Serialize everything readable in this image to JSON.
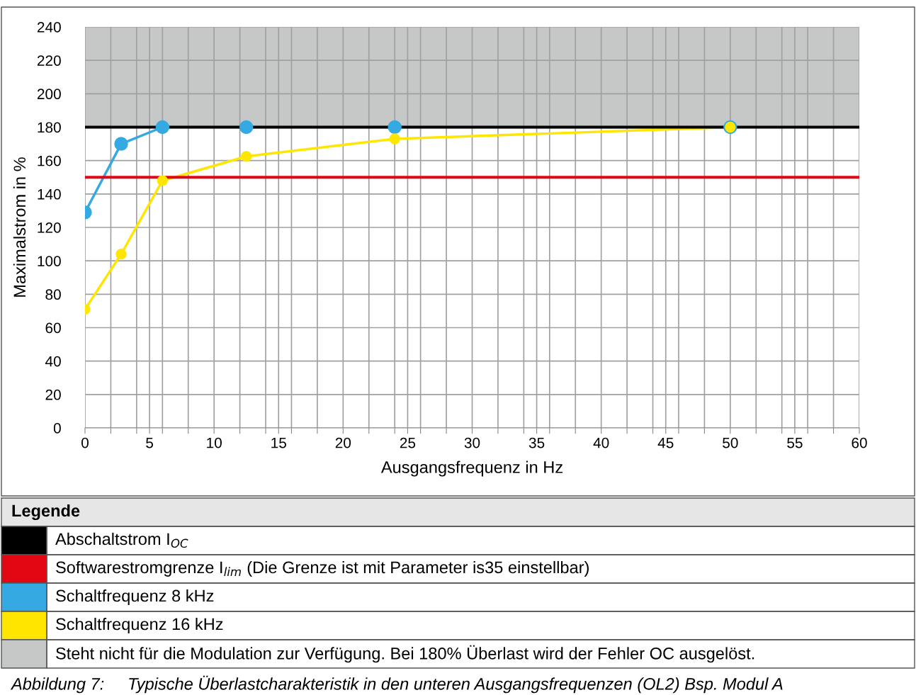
{
  "chart_data": {
    "type": "line",
    "xlabel": "Ausgangsfrequenz in Hz",
    "ylabel": "Maximalstrom in %",
    "legend_title": "Legende",
    "legend": "bottom",
    "grid": true,
    "marker": "circle",
    "line_style": "solid",
    "xlim": [
      0,
      60
    ],
    "ylim": [
      0,
      240
    ],
    "xticks": [
      0,
      {
        "value": 2,
        "label": null
      },
      {
        "value": 4,
        "label": null
      },
      5,
      {
        "value": 6,
        "label": null
      },
      {
        "value": 8,
        "label": null
      },
      10,
      {
        "value": 12,
        "label": null
      },
      {
        "value": 14,
        "label": null
      },
      15,
      {
        "value": 16,
        "label": null
      },
      {
        "value": 18,
        "label": null
      },
      20,
      {
        "value": 22,
        "label": null
      },
      {
        "value": 24,
        "label": null
      },
      25,
      {
        "value": 26,
        "label": null
      },
      {
        "value": 28,
        "label": null
      },
      30,
      {
        "value": 32,
        "label": null
      },
      {
        "value": 34,
        "label": null
      },
      35,
      {
        "value": 36,
        "label": null
      },
      {
        "value": 38,
        "label": null
      },
      40,
      {
        "value": 42,
        "label": null
      },
      {
        "value": 44,
        "label": null
      },
      45,
      {
        "value": 46,
        "label": null
      },
      {
        "value": 48,
        "label": null
      },
      50,
      {
        "value": 52,
        "label": null
      },
      {
        "value": 54,
        "label": null
      },
      55,
      {
        "value": 56,
        "label": null
      },
      {
        "value": 58,
        "label": null
      },
      60
    ],
    "yticks": [
      0,
      20,
      40,
      60,
      80,
      100,
      120,
      140,
      160,
      180,
      200,
      220,
      240
    ],
    "x": [
      0,
      2.8,
      6,
      12.5,
      24,
      50
    ],
    "series": [
      {
        "name": "Schaltfrequenz 8 kHz",
        "color": "#35a9e1",
        "values": [
          129,
          170,
          180,
          180,
          180,
          180
        ]
      },
      {
        "name": "Schaltfrequenz 16 kHz",
        "color": "#ffe600",
        "values": [
          71,
          104,
          148,
          162.5,
          173,
          180
        ]
      }
    ],
    "ref_lines": [
      {
        "axis": "y",
        "value": 180,
        "label": "Abschaltstrom I$_{OC}$",
        "color": "#000000"
      },
      {
        "axis": "y",
        "value": 150,
        "label": "Softwarestromgrenze I$_{lim}$ (Die Grenze ist mit Parameter is35 einstellbar)",
        "color": "#e30613"
      }
    ],
    "bands": [
      {
        "axis": "y",
        "from": 180,
        "to": 240,
        "label": "Steht nicht für die Modulation zur Verfügung. Bei 180% Überlast wird der Fehler OC ausgelöst.",
        "color": "#c6c7c7"
      }
    ],
    "annotations": [
      "Abbildung 7:     Typische Überlastcharakteristik in den unteren Ausgangsfrequenzen (OL2) Bsp. Modul A"
    ]
  }
}
